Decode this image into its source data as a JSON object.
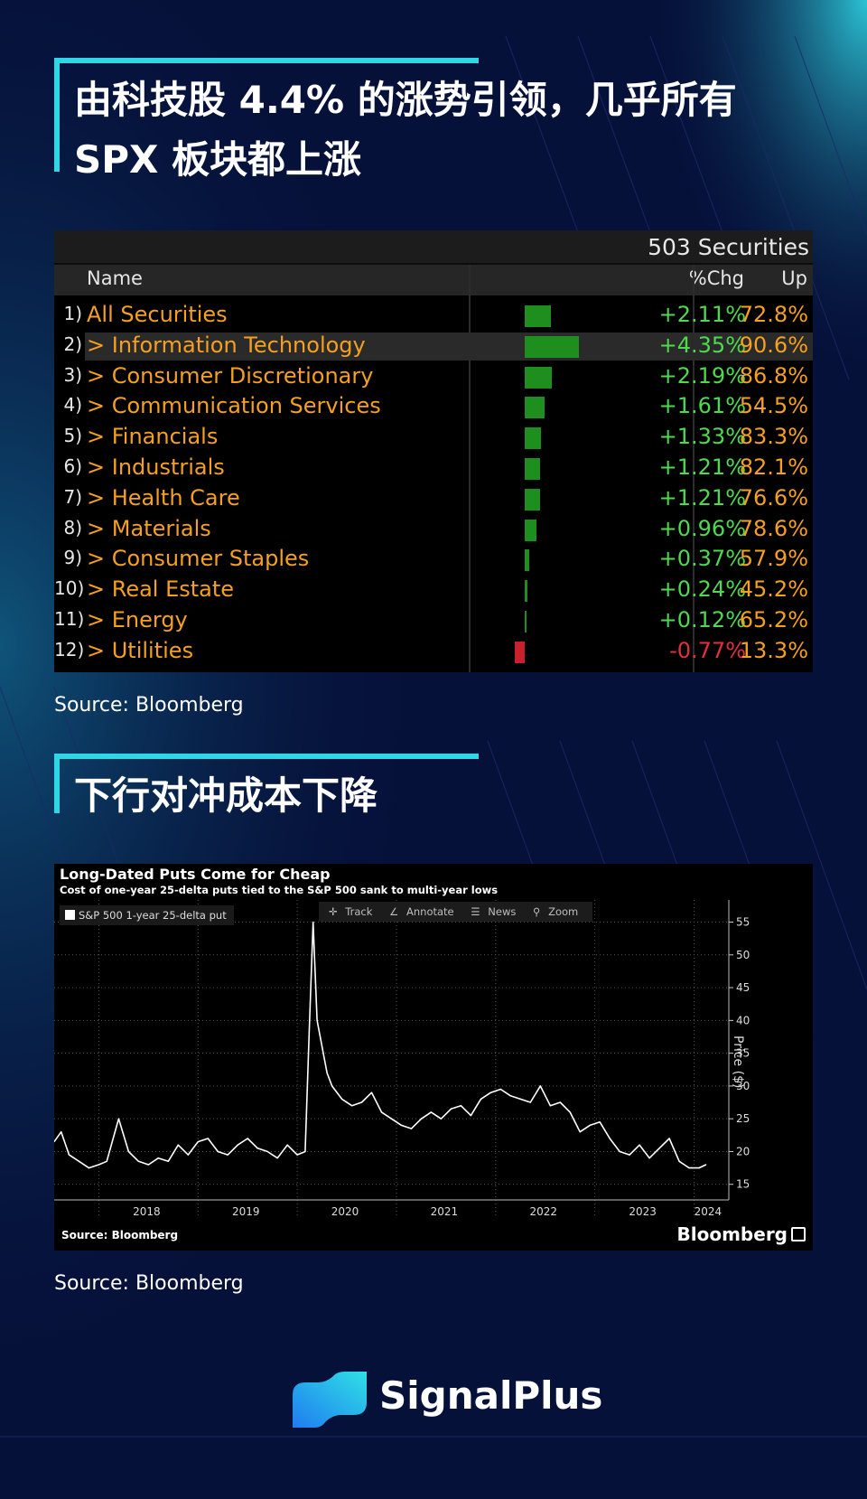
{
  "section1": {
    "title": "由科技股 4.4% 的涨势引领，几乎所有\nSPX 板块都上涨"
  },
  "table": {
    "count_label": "503 Securities",
    "headers": {
      "name": "Name",
      "chg": "%Chg",
      "up": "Up"
    },
    "rows": [
      {
        "num": "1)",
        "name": "All Securities",
        "chg": "+2.11%",
        "chg_value": 2.11,
        "up": "72.8%"
      },
      {
        "num": "2)",
        "name": "> Information Technology",
        "chg": "+4.35%",
        "chg_value": 4.35,
        "up": "90.6%"
      },
      {
        "num": "3)",
        "name": "> Consumer Discretionary",
        "chg": "+2.19%",
        "chg_value": 2.19,
        "up": "86.8%"
      },
      {
        "num": "4)",
        "name": "> Communication Services",
        "chg": "+1.61%",
        "chg_value": 1.61,
        "up": "54.5%"
      },
      {
        "num": "5)",
        "name": "> Financials",
        "chg": "+1.33%",
        "chg_value": 1.33,
        "up": "83.3%"
      },
      {
        "num": "6)",
        "name": "> Industrials",
        "chg": "+1.21%",
        "chg_value": 1.21,
        "up": "82.1%"
      },
      {
        "num": "7)",
        "name": "> Health Care",
        "chg": "+1.21%",
        "chg_value": 1.21,
        "up": "76.6%"
      },
      {
        "num": "8)",
        "name": "> Materials",
        "chg": "+0.96%",
        "chg_value": 0.96,
        "up": "78.6%"
      },
      {
        "num": "9)",
        "name": "> Consumer Staples",
        "chg": "+0.37%",
        "chg_value": 0.37,
        "up": "57.9%"
      },
      {
        "num": "10)",
        "name": "> Real Estate",
        "chg": "+0.24%",
        "chg_value": 0.24,
        "up": "45.2%"
      },
      {
        "num": "11)",
        "name": "> Energy",
        "chg": "+0.12%",
        "chg_value": 0.12,
        "up": "65.2%"
      },
      {
        "num": "12)",
        "name": "> Utilities",
        "chg": "-0.77%",
        "chg_value": -0.77,
        "up": "13.3%"
      }
    ],
    "colors": {
      "positive": "#4ed94e",
      "negative": "#e0303a",
      "bar_positive": "#1e8f1e",
      "bar_negative": "#c8202c",
      "name": "#f5a021"
    }
  },
  "source1": "Source: Bloomberg",
  "section2": {
    "title": "下行对冲成本下降"
  },
  "chart_data": {
    "type": "line",
    "title": "Long-Dated Puts Come for Cheap",
    "subtitle": "Cost of one-year 25-delta puts tied to the S&P 500 sank to multi-year lows",
    "series": [
      {
        "name": "S&P 500 1-year 25-delta put",
        "color": "#ffffff",
        "x": [
          2017.55,
          2017.62,
          2017.7,
          2017.8,
          2017.9,
          2018.0,
          2018.08,
          2018.2,
          2018.3,
          2018.4,
          2018.5,
          2018.6,
          2018.7,
          2018.8,
          2018.9,
          2019.0,
          2019.1,
          2019.2,
          2019.3,
          2019.4,
          2019.5,
          2019.6,
          2019.7,
          2019.8,
          2019.9,
          2020.0,
          2020.08,
          2020.12,
          2020.16,
          2020.2,
          2020.25,
          2020.3,
          2020.35,
          2020.45,
          2020.55,
          2020.65,
          2020.75,
          2020.85,
          2020.95,
          2021.05,
          2021.15,
          2021.25,
          2021.35,
          2021.45,
          2021.55,
          2021.65,
          2021.75,
          2021.85,
          2021.95,
          2022.05,
          2022.15,
          2022.25,
          2022.35,
          2022.45,
          2022.55,
          2022.65,
          2022.75,
          2022.85,
          2022.95,
          2023.05,
          2023.15,
          2023.25,
          2023.35,
          2023.45,
          2023.55,
          2023.65,
          2023.75,
          2023.85,
          2023.95,
          2024.05,
          2024.12
        ],
        "values": [
          21.5,
          23,
          19.5,
          18.5,
          17.5,
          18,
          18.5,
          25,
          20,
          18.5,
          18,
          19,
          18.5,
          21,
          19.5,
          21.5,
          22,
          20,
          19.5,
          21,
          22,
          20.5,
          20,
          19,
          21,
          19.5,
          20,
          38,
          55,
          40,
          36,
          32,
          30,
          28,
          27,
          27.5,
          29,
          26,
          25,
          24,
          23.5,
          25,
          26,
          25,
          26.5,
          27,
          25.5,
          28,
          29,
          29.5,
          28.5,
          28,
          27.5,
          30,
          27,
          27.5,
          26,
          23,
          24,
          24.5,
          22,
          20,
          19.5,
          21,
          19,
          20.5,
          22,
          18.5,
          17.5,
          17.5,
          18
        ]
      }
    ],
    "x_ticks": [
      "2018",
      "2019",
      "2020",
      "2021",
      "2022",
      "2023",
      "2024"
    ],
    "y_ticks": [
      "15",
      "20",
      "25",
      "30",
      "35",
      "40",
      "45",
      "50",
      "55"
    ],
    "ylabel": "Price ($)",
    "ylim": [
      14,
      57
    ],
    "xlim": [
      2017.55,
      2024.35
    ],
    "grid": true,
    "legend": "top-left",
    "toolbar": [
      "Track",
      "Annotate",
      "News",
      "Zoom"
    ],
    "source": "Source: Bloomberg",
    "brand": "Bloomberg"
  },
  "source2": "Source: Bloomberg",
  "footer": {
    "brand": "SignalPlus"
  }
}
